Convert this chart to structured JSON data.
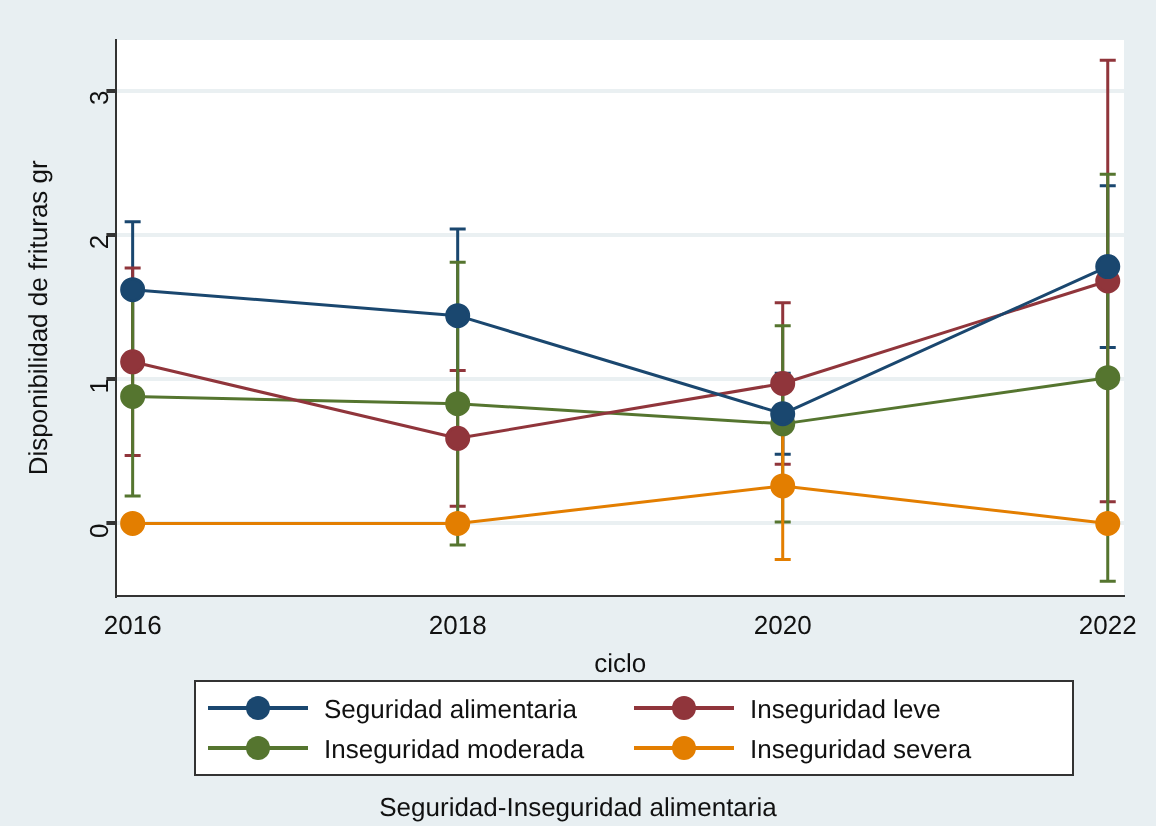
{
  "chart_data": {
    "type": "line",
    "xlabel": "ciclo",
    "ylabel": "Disponibilidad de frituras gr",
    "legend_title": "Seguridad-Inseguridad alimentaria",
    "x": [
      2016,
      2018,
      2020,
      2022
    ],
    "series": [
      {
        "name": "Seguridad alimentaria",
        "color": "#1a476f",
        "values": [
          1.62,
          1.44,
          0.76,
          1.78
        ],
        "errors": [
          0.47,
          0.6,
          0.28,
          0.56
        ]
      },
      {
        "name": "Inseguridad leve",
        "color": "#90353b",
        "values": [
          1.12,
          0.59,
          0.97,
          1.68
        ],
        "errors": [
          0.65,
          0.47,
          0.56,
          1.53
        ]
      },
      {
        "name": "Inseguridad moderada",
        "color": "#55752f",
        "values": [
          0.88,
          0.83,
          0.69,
          1.01
        ],
        "errors": [
          0.69,
          0.98,
          0.68,
          1.41
        ]
      },
      {
        "name": "Inseguridad severa",
        "color": "#e37e00",
        "values": [
          0,
          0,
          0.26,
          0
        ],
        "errors": [
          null,
          null,
          0.51,
          null
        ]
      }
    ],
    "xlim": [
      2015.9,
      2022.1
    ],
    "xticks": [
      2016,
      2018,
      2020,
      2022
    ],
    "ylim": [
      -0.5,
      3.35
    ],
    "yticks": [
      0,
      1,
      2,
      3
    ],
    "grid": "y",
    "legend": "bottom",
    "marker": "circle",
    "line_style": "solid"
  }
}
